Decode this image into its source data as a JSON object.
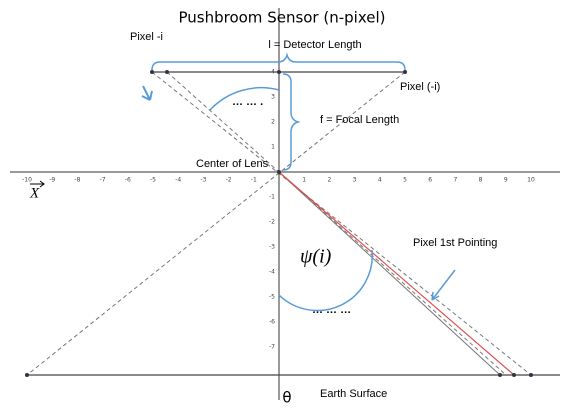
{
  "title": "Pushbroom Sensor (n-pixel)",
  "labels": {
    "pixel_left": "Pixel -i",
    "detector_length": "l = Detector Length",
    "pixel_right": "Pixel (-i)",
    "dots_top": "… … .",
    "focal_length": "f = Focal Length",
    "center": "Center of Lens",
    "x_axis": "X",
    "pointing": "Pixel 1st Pointing",
    "psi": "ψ(i)",
    "dots_bottom": "… … …",
    "theta": "θ",
    "earth": "Earth Surface"
  },
  "axis": {
    "x_ticks": [
      -10,
      -9,
      -8,
      -7,
      -6,
      -5,
      -4,
      -3,
      -2,
      -1,
      1,
      2,
      3,
      4,
      5,
      6,
      7,
      8,
      9,
      10
    ],
    "y_ticks": [
      4,
      3,
      2,
      1,
      -1,
      -2,
      -3,
      -4,
      -5,
      -6,
      -7
    ]
  }
}
